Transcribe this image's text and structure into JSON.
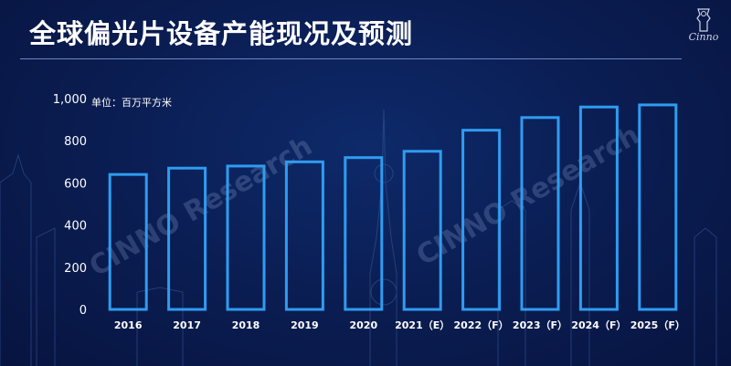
{
  "title": "全球偏光片设备产能现况及预测",
  "logo": {
    "text": "Cinno"
  },
  "watermark": "CINNO Research",
  "colors": {
    "background": "#0a1c50",
    "bar_stroke": "#2f9cf0",
    "text": "#ffffff"
  },
  "chart_data": {
    "type": "bar",
    "unit_label": "单位：百万平方米",
    "categories": [
      "2016",
      "2017",
      "2018",
      "2019",
      "2020",
      "2021（E）",
      "2022（F）",
      "2023（F）",
      "2024（F）",
      "2025（F）"
    ],
    "values": [
      640,
      670,
      680,
      700,
      720,
      750,
      850,
      910,
      960,
      970
    ],
    "y_ticks": [
      "0",
      "200",
      "400",
      "600",
      "800",
      "1,000"
    ],
    "ylim": [
      0,
      1000
    ],
    "grid": false,
    "legend": "none"
  }
}
